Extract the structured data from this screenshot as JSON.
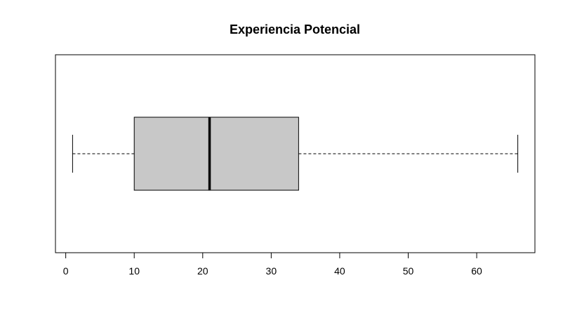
{
  "chart_data": {
    "type": "boxplot",
    "orientation": "horizontal",
    "title": "Experiencia Potencial",
    "xlabel": "",
    "ylabel": "",
    "xlim": [
      -1.5,
      68.5
    ],
    "x_ticks": [
      0,
      10,
      20,
      30,
      40,
      50,
      60
    ],
    "x_tick_labels": [
      "0",
      "10",
      "20",
      "30",
      "40",
      "50",
      "60"
    ],
    "grid": false,
    "box": {
      "whisker_low": 1,
      "q1": 10,
      "median": 21,
      "q3": 34,
      "whisker_high": 66,
      "fill_color": "#c8c8c8",
      "line_color": "#000000"
    }
  }
}
